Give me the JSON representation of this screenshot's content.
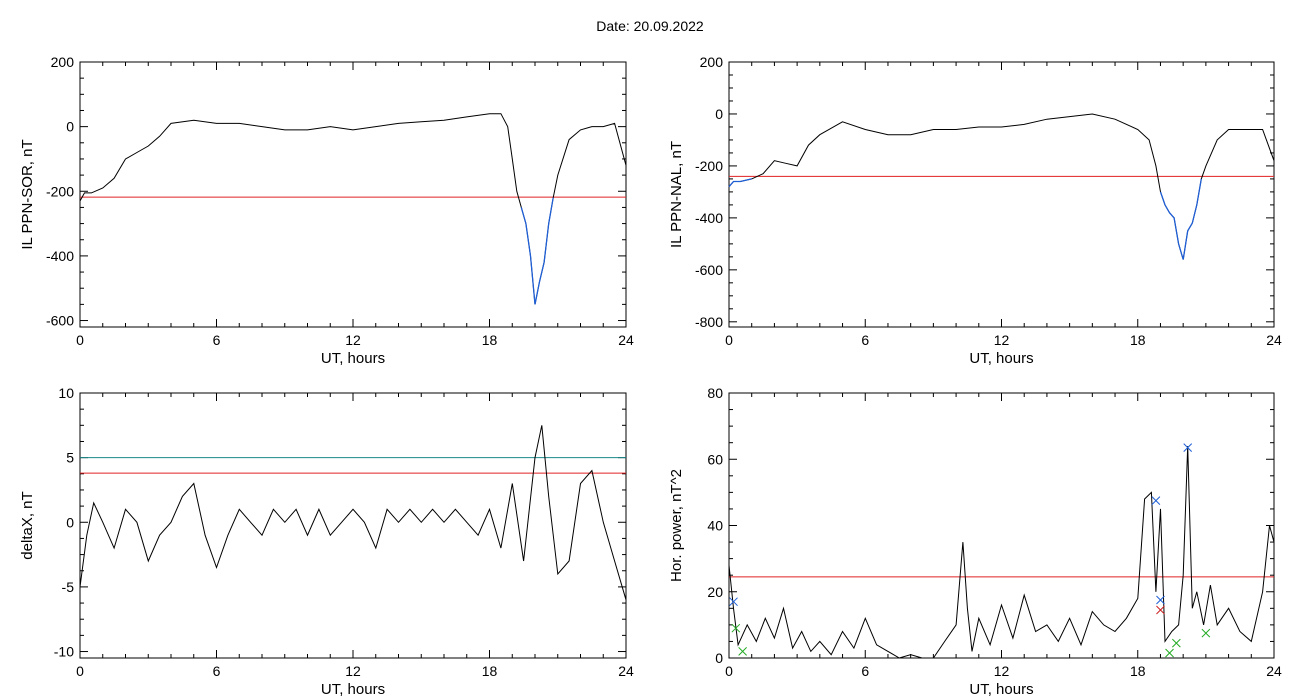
{
  "title": "Date:  20.09.2022",
  "chart_data": [
    {
      "type": "line",
      "ylabel": "IL PPN-SOR, nT",
      "xlabel": "UT, hours",
      "xlim": [
        0,
        24
      ],
      "ylim": [
        -620,
        200
      ],
      "xticks": [
        "0",
        "6",
        "12",
        "18",
        "24"
      ],
      "yticks": [
        200,
        0,
        -200,
        -400,
        -600
      ],
      "ytick_labels": [
        "200",
        "0",
        "-200",
        "-400",
        "-600"
      ],
      "threshold": -218,
      "colors": {
        "line": "#000000",
        "highlight": "#1f5fd6",
        "threshold": "#e02020"
      },
      "series": [
        {
          "x": [
            0,
            0.2,
            0.5,
            1.0,
            1.5,
            2.0,
            2.5,
            3.0,
            3.5,
            4.0,
            5.0,
            6.0,
            7.0,
            8.0,
            9.0,
            10.0,
            11.0,
            12.0,
            13.0,
            14.0,
            15.0,
            16.0,
            17.0,
            18.0,
            18.5,
            18.8,
            19.0,
            19.2,
            19.4,
            19.6,
            19.8,
            20.0,
            20.2,
            20.4,
            20.6,
            20.8,
            21.0,
            21.5,
            22.0,
            22.5,
            23.0,
            23.5,
            24.0
          ],
          "y": [
            -230,
            -205,
            -205,
            -190,
            -160,
            -100,
            -80,
            -60,
            -30,
            10,
            20,
            10,
            10,
            0,
            -10,
            -10,
            0,
            -10,
            0,
            10,
            15,
            20,
            30,
            40,
            40,
            0,
            -100,
            -200,
            -250,
            -300,
            -400,
            -550,
            -480,
            -420,
            -300,
            -220,
            -150,
            -40,
            -10,
            0,
            0,
            10,
            -120
          ]
        }
      ]
    },
    {
      "type": "line",
      "ylabel": "IL PPN-NAL, nT",
      "xlabel": "UT, hours",
      "xlim": [
        0,
        24
      ],
      "ylim": [
        -820,
        200
      ],
      "xticks": [
        "0",
        "6",
        "12",
        "18",
        "24"
      ],
      "yticks": [
        200,
        0,
        -200,
        -400,
        -600,
        -800
      ],
      "ytick_labels": [
        "200",
        "0",
        "-200",
        "-400",
        "-600",
        "-800"
      ],
      "threshold": -240,
      "colors": {
        "line": "#000000",
        "highlight": "#1f5fd6",
        "threshold": "#e02020"
      },
      "series": [
        {
          "x": [
            0,
            0.2,
            0.5,
            1.0,
            1.5,
            2.0,
            2.5,
            3.0,
            3.5,
            4.0,
            5.0,
            6.0,
            7.0,
            8.0,
            9.0,
            10.0,
            11.0,
            12.0,
            13.0,
            14.0,
            15.0,
            16.0,
            17.0,
            18.0,
            18.5,
            18.8,
            19.0,
            19.2,
            19.4,
            19.6,
            19.8,
            20.0,
            20.2,
            20.4,
            20.6,
            20.8,
            21.0,
            21.5,
            22.0,
            22.5,
            23.0,
            23.5,
            24.0
          ],
          "y": [
            -280,
            -260,
            -260,
            -250,
            -230,
            -180,
            -190,
            -200,
            -120,
            -80,
            -30,
            -60,
            -80,
            -80,
            -60,
            -60,
            -50,
            -50,
            -40,
            -20,
            -10,
            0,
            -20,
            -60,
            -100,
            -200,
            -300,
            -350,
            -380,
            -400,
            -500,
            -560,
            -450,
            -420,
            -350,
            -250,
            -200,
            -100,
            -60,
            -60,
            -60,
            -60,
            -180
          ]
        }
      ]
    },
    {
      "type": "line",
      "ylabel": "deltaX, nT",
      "xlabel": "UT, hours",
      "xlim": [
        0,
        24
      ],
      "ylim": [
        -10.5,
        10
      ],
      "xticks": [
        "0",
        "6",
        "12",
        "18",
        "24"
      ],
      "yticks": [
        10,
        5,
        0,
        -5,
        -10
      ],
      "ytick_labels": [
        "10",
        "5",
        "0",
        "-5",
        "-10"
      ],
      "threshold": 3.8,
      "upper_threshold": 5.0,
      "colors": {
        "line": "#000000",
        "threshold": "#e02020",
        "upper_threshold": "#1a8a8a"
      },
      "series": [
        {
          "x": [
            0,
            0.3,
            0.6,
            1.0,
            1.5,
            2.0,
            2.5,
            3.0,
            3.5,
            4.0,
            4.5,
            5.0,
            5.5,
            6.0,
            6.5,
            7.0,
            7.5,
            8.0,
            8.5,
            9.0,
            9.5,
            10.0,
            10.5,
            11.0,
            11.5,
            12.0,
            12.5,
            13.0,
            13.5,
            14.0,
            14.5,
            15.0,
            15.5,
            16.0,
            16.5,
            17.0,
            17.5,
            18.0,
            18.5,
            19.0,
            19.5,
            20.0,
            20.3,
            20.6,
            21.0,
            21.5,
            22.0,
            22.5,
            23.0,
            23.5,
            24.0
          ],
          "y": [
            -5,
            -1,
            1.5,
            0,
            -2,
            1,
            0,
            -3,
            -1,
            0,
            2,
            3,
            -1,
            -3.5,
            -1,
            1,
            0,
            -1,
            1,
            0,
            1,
            -1,
            1,
            -1,
            0,
            1,
            0,
            -2,
            1,
            0,
            1,
            0,
            1,
            0,
            1,
            0,
            -1,
            1,
            -2,
            3,
            -3,
            5,
            7.5,
            2,
            -4,
            -3,
            3,
            4,
            0,
            -3,
            -6
          ]
        }
      ]
    },
    {
      "type": "line",
      "ylabel": "Hor. power, nT^2",
      "xlabel": "UT, hours",
      "xlim": [
        0,
        24
      ],
      "ylim": [
        0,
        80
      ],
      "xticks": [
        "0",
        "6",
        "12",
        "18",
        "24"
      ],
      "yticks": [
        80,
        60,
        40,
        20,
        0
      ],
      "ytick_labels": [
        "80",
        "60",
        "40",
        "20",
        "0"
      ],
      "threshold": 24.5,
      "colors": {
        "line": "#000000",
        "threshold": "#e02020",
        "marker_blue": "#1f5fd6",
        "marker_green": "#22aa22",
        "marker_red": "#cc2222"
      },
      "series": [
        {
          "x": [
            0,
            0.2,
            0.4,
            0.8,
            1.2,
            1.6,
            2.0,
            2.4,
            2.8,
            3.2,
            3.6,
            4.0,
            4.5,
            5.0,
            5.5,
            6.0,
            6.5,
            7.0,
            7.5,
            8.0,
            8.5,
            9.0,
            9.5,
            10.0,
            10.3,
            10.5,
            10.7,
            11.0,
            11.5,
            12.0,
            12.5,
            13.0,
            13.5,
            14.0,
            14.5,
            15.0,
            15.5,
            16.0,
            16.5,
            17.0,
            17.5,
            18.0,
            18.3,
            18.6,
            18.8,
            19.0,
            19.2,
            19.5,
            19.8,
            20.0,
            20.2,
            20.4,
            20.6,
            20.9,
            21.2,
            21.5,
            22.0,
            22.5,
            23.0,
            23.5,
            23.8,
            24.0
          ],
          "y": [
            28,
            15,
            4,
            10,
            5,
            12,
            6,
            15,
            3,
            8,
            2,
            5,
            1,
            8,
            3,
            12,
            4,
            2,
            0,
            1,
            0,
            0,
            5,
            10,
            35,
            15,
            2,
            12,
            4,
            16,
            6,
            19,
            8,
            10,
            5,
            12,
            4,
            14,
            10,
            8,
            12,
            18,
            48,
            50,
            20,
            45,
            5,
            8,
            10,
            25,
            64,
            15,
            20,
            10,
            22,
            10,
            15,
            8,
            5,
            20,
            40,
            35
          ]
        }
      ],
      "markers": [
        {
          "x": 18.8,
          "y": 47.5,
          "color": "blue"
        },
        {
          "x": 20.2,
          "y": 63.5,
          "color": "blue"
        },
        {
          "x": 19.0,
          "y": 17.5,
          "color": "blue"
        },
        {
          "x": 19.0,
          "y": 14.5,
          "color": "red"
        },
        {
          "x": 0.2,
          "y": 17,
          "color": "blue"
        },
        {
          "x": 0.3,
          "y": 9,
          "color": "green"
        },
        {
          "x": 0.6,
          "y": 2,
          "color": "green"
        },
        {
          "x": 19.4,
          "y": 1.5,
          "color": "green"
        },
        {
          "x": 19.7,
          "y": 4.5,
          "color": "green"
        },
        {
          "x": 21.0,
          "y": 7.5,
          "color": "green"
        }
      ]
    }
  ]
}
